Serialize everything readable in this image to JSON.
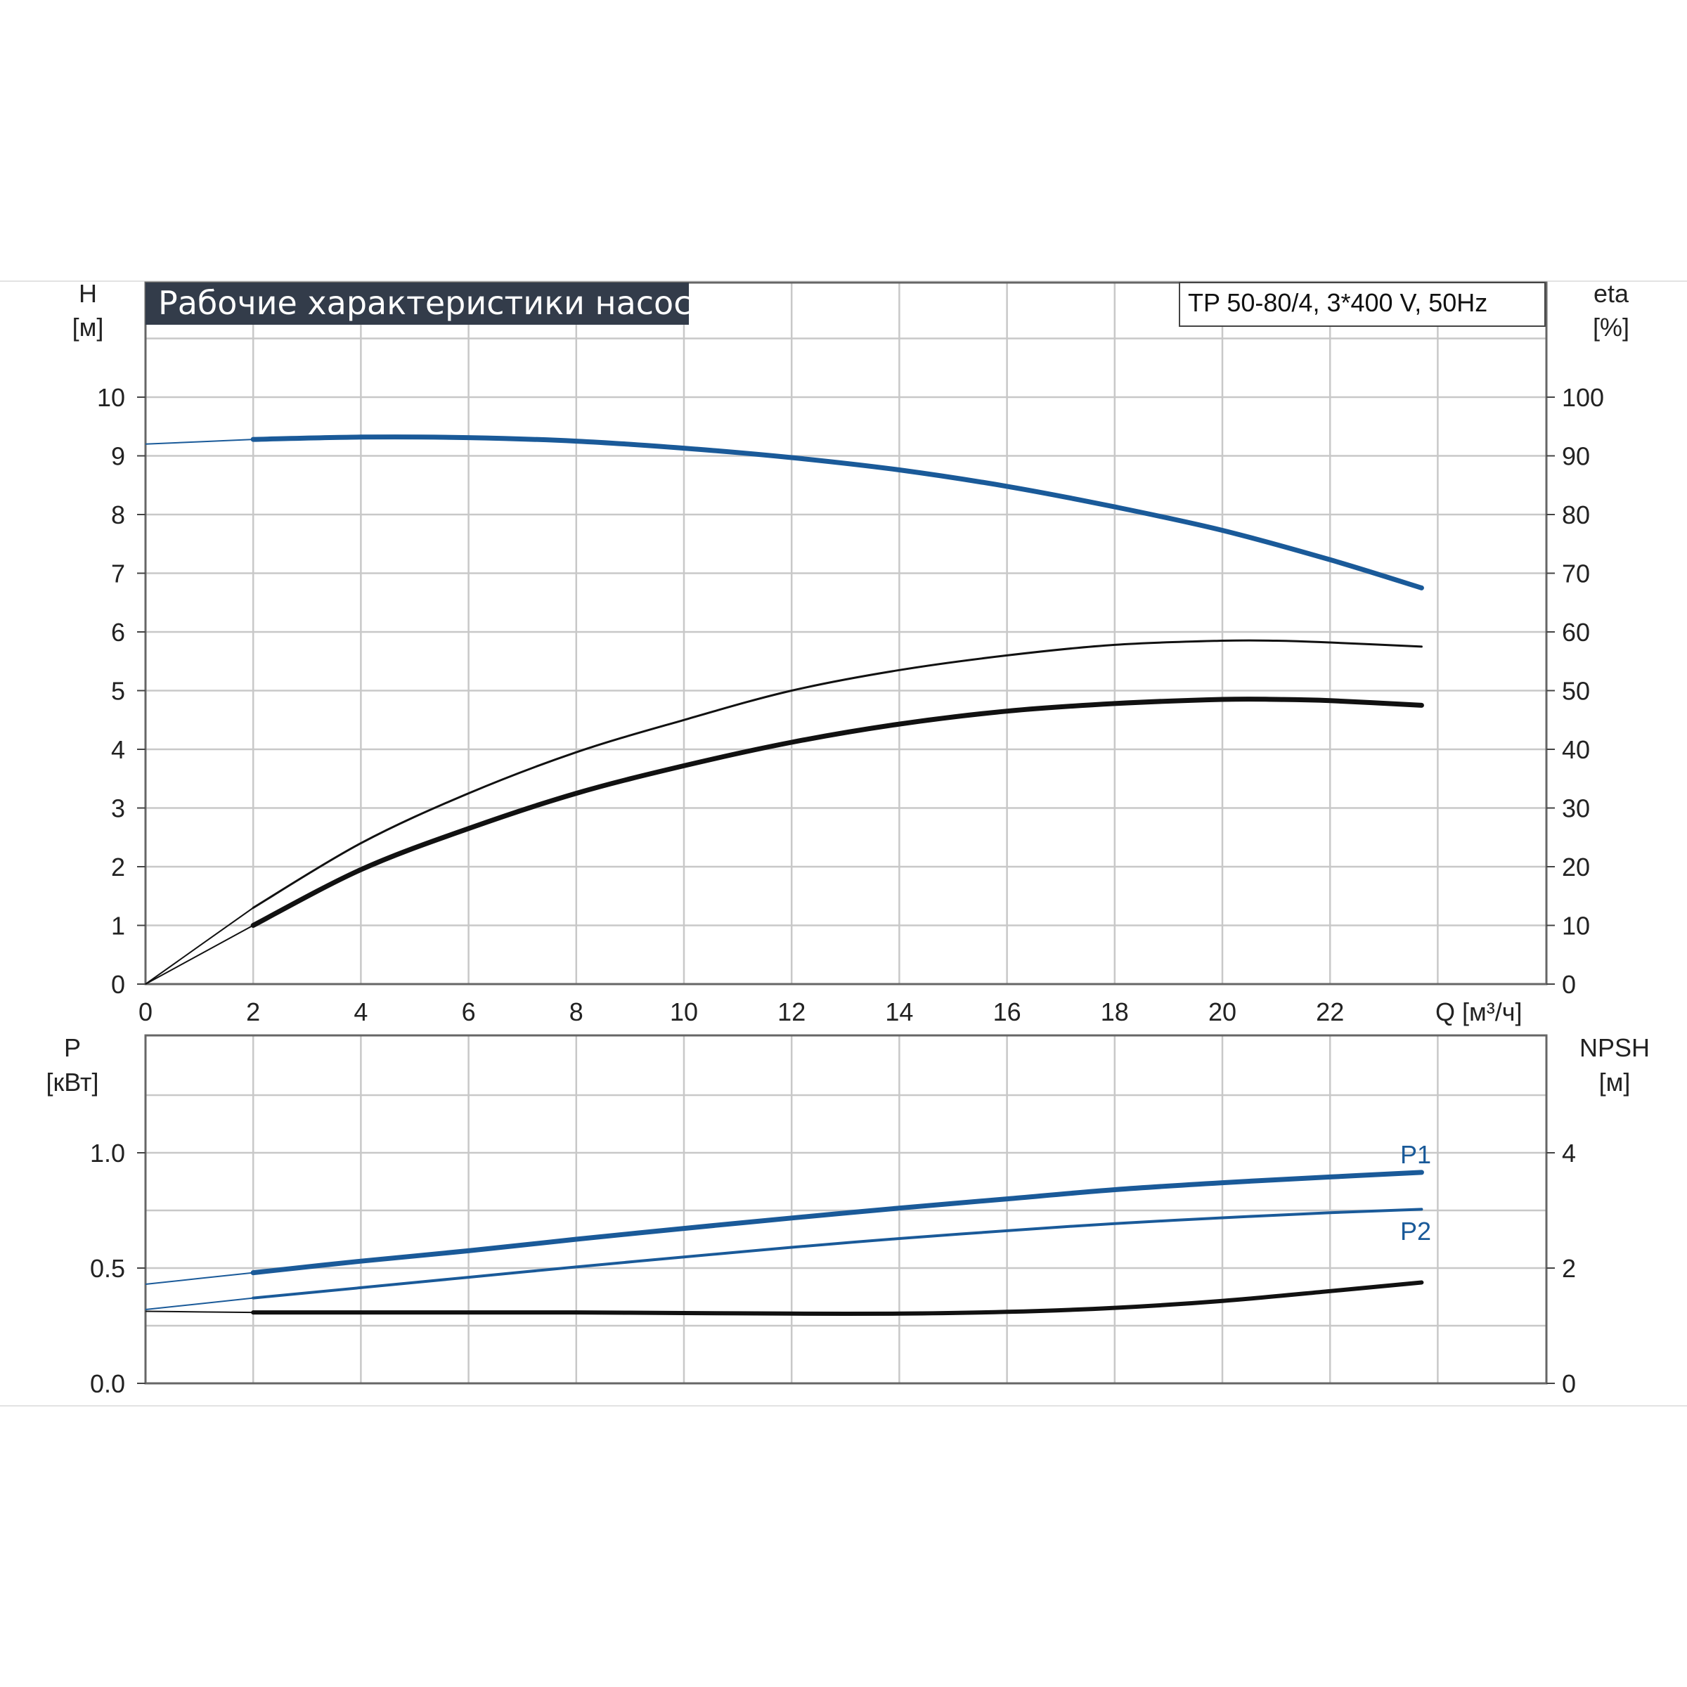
{
  "title": "Рабочие характеристики насоса",
  "model": "TP 50-80/4, 3*400 V, 50Hz",
  "colors": {
    "title_bg": "#333c4a",
    "blue": "#1a5a99",
    "black": "#111111",
    "grid": "#c8c8c8"
  },
  "chart_data": [
    {
      "type": "line",
      "xlabel": "Q [м³/ч]",
      "x_ticks": [
        "0",
        "2",
        "4",
        "6",
        "8",
        "10",
        "12",
        "14",
        "16",
        "18",
        "20",
        "22"
      ],
      "xlim": [
        0,
        26
      ],
      "ylabel_left": "H",
      "ylabel_left_unit": "[м]",
      "ylim_left": [
        0,
        12
      ],
      "y_ticks_left": [
        "0",
        "1",
        "2",
        "3",
        "4",
        "5",
        "6",
        "7",
        "8",
        "9",
        "10"
      ],
      "ylabel_right": "eta",
      "ylabel_right_unit": "[%]",
      "ylim_right": [
        0,
        120
      ],
      "y_ticks_right": [
        "0",
        "10",
        "20",
        "30",
        "40",
        "50",
        "60",
        "70",
        "80",
        "90",
        "100"
      ],
      "grid": true,
      "series": [
        {
          "axis": "left",
          "color": "#1a5a99",
          "x": [
            0,
            2,
            4,
            6,
            8,
            10,
            12,
            14,
            16,
            18,
            20,
            22,
            23.7
          ],
          "y": [
            9.2,
            9.28,
            9.32,
            9.31,
            9.25,
            9.13,
            8.97,
            8.76,
            8.48,
            8.13,
            7.73,
            7.23,
            6.75
          ]
        },
        {
          "axis": "right",
          "color": "#111111",
          "x": [
            0,
            2,
            4,
            6,
            8,
            10,
            12,
            14,
            16,
            18,
            20,
            21,
            22,
            23.7
          ],
          "y": [
            0,
            13,
            24,
            32.5,
            39.5,
            45,
            50,
            53.5,
            56,
            57.8,
            58.5,
            58.5,
            58.2,
            57.5
          ]
        },
        {
          "axis": "right",
          "color": "#111111",
          "x": [
            0,
            2,
            4,
            6,
            8,
            10,
            12,
            14,
            16,
            18,
            20,
            21,
            22,
            23.7
          ],
          "y": [
            0,
            10,
            19.5,
            26.5,
            32.5,
            37.2,
            41.2,
            44.3,
            46.5,
            47.8,
            48.5,
            48.5,
            48.3,
            47.5
          ]
        }
      ]
    },
    {
      "type": "line",
      "ylabel_left": "P",
      "ylabel_left_unit": "[кВт]",
      "ylim_left": [
        0,
        1.5
      ],
      "y_ticks_left": [
        "0.0",
        "0.5",
        "1.0"
      ],
      "ylabel_right": "NPSH",
      "ylabel_right_unit": "[м]",
      "ylim_right": [
        0,
        6
      ],
      "y_ticks_right": [
        "0",
        "2",
        "4"
      ],
      "xlim": [
        0,
        26
      ],
      "grid": true,
      "series": [
        {
          "name": "P1",
          "axis": "left",
          "color": "#1a5a99",
          "x": [
            0,
            2,
            4,
            6,
            8,
            10,
            12,
            14,
            16,
            18,
            20,
            22,
            23.7
          ],
          "y": [
            0.43,
            0.48,
            0.53,
            0.575,
            0.625,
            0.672,
            0.717,
            0.76,
            0.8,
            0.84,
            0.87,
            0.895,
            0.915
          ]
        },
        {
          "name": "P2",
          "axis": "left",
          "color": "#1a5a99",
          "x": [
            0,
            2,
            4,
            6,
            8,
            10,
            12,
            14,
            16,
            18,
            20,
            22,
            23.7
          ],
          "y": [
            0.32,
            0.37,
            0.415,
            0.46,
            0.505,
            0.548,
            0.59,
            0.628,
            0.662,
            0.693,
            0.718,
            0.74,
            0.755
          ]
        },
        {
          "axis": "right",
          "color": "#111111",
          "x": [
            0,
            2,
            4,
            6,
            8,
            10,
            12,
            14,
            16,
            18,
            20,
            22,
            23.7
          ],
          "y": [
            1.25,
            1.23,
            1.23,
            1.23,
            1.23,
            1.22,
            1.21,
            1.21,
            1.24,
            1.31,
            1.43,
            1.6,
            1.75
          ]
        }
      ]
    }
  ]
}
